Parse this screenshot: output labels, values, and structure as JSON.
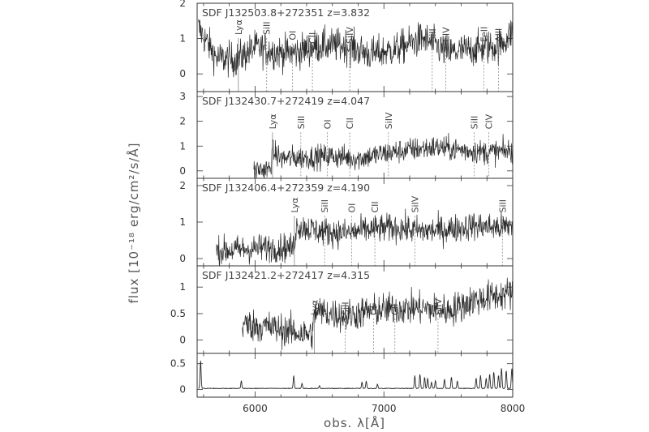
{
  "chart_data": {
    "type": "line",
    "xlabel": "obs. λ[Å]",
    "ylabel": "flux [10⁻¹⁸ erg/cm²/s/Å]",
    "xlim": [
      5550,
      8000
    ],
    "x_ticks": [
      6000,
      7000,
      8000
    ],
    "colors": {
      "line": "#2a2a2a",
      "marker": "#888888"
    },
    "panels": [
      {
        "label": "SDF J132503.8+272351  z=3.832",
        "ylim": [
          -0.5,
          2
        ],
        "y_ticks": [
          0,
          1,
          2
        ],
        "x_start": 5560,
        "x_end": 8000,
        "noise": 0.35,
        "markers": [
          {
            "name": "Lyα",
            "x": 5870,
            "label_level": 1.15,
            "style": "solid"
          },
          {
            "name": "SiII",
            "x": 6090,
            "label_level": 1.15,
            "style": "dotted"
          },
          {
            "name": "OI",
            "x": 6290,
            "label_level": 1.0,
            "style": "dotted"
          },
          {
            "name": "CII",
            "x": 6445,
            "label_level": 0.9,
            "style": "dotted"
          },
          {
            "name": "SiIV",
            "x": 6735,
            "label_level": 0.9,
            "style": "dotted"
          },
          {
            "name": "SiII",
            "x": 7375,
            "label_level": 0.95,
            "style": "dotted"
          },
          {
            "name": "CIV",
            "x": 7480,
            "label_level": 0.95,
            "style": "dotted"
          },
          {
            "name": "FeII",
            "x": 7775,
            "label_level": 0.95,
            "style": "dotted"
          },
          {
            "name": "AlII",
            "x": 7890,
            "label_level": 0.95,
            "style": "dotted"
          }
        ],
        "spectrum": [
          [
            5560,
            1.3
          ],
          [
            5700,
            0.45
          ],
          [
            5850,
            0.4
          ],
          [
            5900,
            0.5
          ],
          [
            6000,
            0.75
          ],
          [
            6200,
            0.6
          ],
          [
            6300,
            0.6
          ],
          [
            6500,
            0.8
          ],
          [
            6700,
            0.8
          ],
          [
            6900,
            0.55
          ],
          [
            7100,
            0.7
          ],
          [
            7300,
            1.0
          ],
          [
            7500,
            0.6
          ],
          [
            7700,
            0.7
          ],
          [
            7900,
            0.8
          ],
          [
            8000,
            1.2
          ]
        ]
      },
      {
        "label": "SDF J132430.7+272419  z=4.047",
        "ylim": [
          -0.3,
          3.2
        ],
        "y_ticks": [
          0,
          1,
          2,
          3
        ],
        "x_start": 5990,
        "x_end": 8000,
        "noise": 0.35,
        "markers": [
          {
            "name": "Lyα",
            "x": 6135,
            "label_level": 1.75,
            "style": "solid"
          },
          {
            "name": "SiII",
            "x": 6355,
            "label_level": 1.75,
            "style": "dotted"
          },
          {
            "name": "OI",
            "x": 6560,
            "label_level": 1.75,
            "style": "dotted"
          },
          {
            "name": "CII",
            "x": 6735,
            "label_level": 1.75,
            "style": "dotted"
          },
          {
            "name": "SiIV",
            "x": 7035,
            "label_level": 1.75,
            "style": "dotted"
          },
          {
            "name": "SiII",
            "x": 7700,
            "label_level": 1.75,
            "style": "dotted"
          },
          {
            "name": "CIV",
            "x": 7815,
            "label_level": 1.75,
            "style": "dotted"
          }
        ],
        "spectrum": [
          [
            5990,
            0.05
          ],
          [
            6120,
            0.05
          ],
          [
            6130,
            0.8
          ],
          [
            6200,
            0.5
          ],
          [
            6400,
            0.55
          ],
          [
            6600,
            0.6
          ],
          [
            6800,
            0.5
          ],
          [
            7000,
            0.7
          ],
          [
            7200,
            0.85
          ],
          [
            7400,
            0.95
          ],
          [
            7600,
            0.85
          ],
          [
            7800,
            0.75
          ],
          [
            8000,
            0.8
          ]
        ]
      },
      {
        "label": "SDF J132406.4+272359  z=4.190",
        "ylim": [
          -0.2,
          2.2
        ],
        "y_ticks": [
          0,
          1,
          2
        ],
        "x_start": 5700,
        "x_end": 8000,
        "noise": 0.28,
        "markers": [
          {
            "name": "Lyα",
            "x": 6305,
            "label_level": 1.3,
            "style": "solid"
          },
          {
            "name": "SiII",
            "x": 6540,
            "label_level": 1.3,
            "style": "dotted"
          },
          {
            "name": "OI",
            "x": 6750,
            "label_level": 1.3,
            "style": "dotted"
          },
          {
            "name": "CII",
            "x": 6930,
            "label_level": 1.3,
            "style": "dotted"
          },
          {
            "name": "SiIV",
            "x": 7240,
            "label_level": 1.3,
            "style": "dotted"
          },
          {
            "name": "SiII",
            "x": 7920,
            "label_level": 1.3,
            "style": "dotted"
          }
        ],
        "spectrum": [
          [
            5700,
            0.2
          ],
          [
            5900,
            0.25
          ],
          [
            6100,
            0.3
          ],
          [
            6300,
            0.3
          ],
          [
            6320,
            0.9
          ],
          [
            6500,
            0.75
          ],
          [
            6700,
            0.7
          ],
          [
            6900,
            0.8
          ],
          [
            7100,
            0.85
          ],
          [
            7300,
            0.75
          ],
          [
            7500,
            0.8
          ],
          [
            7700,
            0.9
          ],
          [
            7900,
            0.85
          ],
          [
            8000,
            0.9
          ]
        ]
      },
      {
        "label": "SDF J132421.2+272417  z=4.315",
        "ylim": [
          -0.25,
          1.4
        ],
        "y_ticks": [
          0,
          0.5,
          1
        ],
        "x_start": 5900,
        "x_end": 8000,
        "noise": 0.22,
        "markers": [
          {
            "name": "Lyα",
            "x": 6460,
            "label_level": 0.5,
            "style": "solid"
          },
          {
            "name": "SiII",
            "x": 6700,
            "label_level": 0.5,
            "style": "dotted"
          },
          {
            "name": "OI",
            "x": 6920,
            "label_level": 0.5,
            "style": "dotted"
          },
          {
            "name": "CII",
            "x": 7085,
            "label_level": 0.5,
            "style": "dotted"
          },
          {
            "name": "SiIV",
            "x": 7420,
            "label_level": 0.5,
            "style": "dotted"
          }
        ],
        "spectrum": [
          [
            5900,
            0.3
          ],
          [
            6100,
            0.25
          ],
          [
            6300,
            0.15
          ],
          [
            6440,
            0.1
          ],
          [
            6470,
            0.55
          ],
          [
            6700,
            0.45
          ],
          [
            6900,
            0.55
          ],
          [
            7100,
            0.6
          ],
          [
            7300,
            0.6
          ],
          [
            7500,
            0.55
          ],
          [
            7700,
            0.75
          ],
          [
            7900,
            0.85
          ],
          [
            8000,
            0.9
          ]
        ]
      },
      {
        "label": "",
        "ylim": [
          -0.15,
          0.7
        ],
        "y_ticks": [
          0,
          0.5
        ],
        "x_start": 5560,
        "x_end": 8000,
        "kind": "sky",
        "sky_lines": [
          {
            "x": 5577,
            "h": 0.55
          },
          {
            "x": 5893,
            "h": 0.15
          },
          {
            "x": 6300,
            "h": 0.25
          },
          {
            "x": 6364,
            "h": 0.1
          },
          {
            "x": 6500,
            "h": 0.05
          },
          {
            "x": 6830,
            "h": 0.12
          },
          {
            "x": 6863,
            "h": 0.14
          },
          {
            "x": 6950,
            "h": 0.08
          },
          {
            "x": 7240,
            "h": 0.25
          },
          {
            "x": 7280,
            "h": 0.28
          },
          {
            "x": 7316,
            "h": 0.22
          },
          {
            "x": 7340,
            "h": 0.2
          },
          {
            "x": 7370,
            "h": 0.12
          },
          {
            "x": 7400,
            "h": 0.15
          },
          {
            "x": 7470,
            "h": 0.18
          },
          {
            "x": 7524,
            "h": 0.22
          },
          {
            "x": 7570,
            "h": 0.15
          },
          {
            "x": 7716,
            "h": 0.2
          },
          {
            "x": 7750,
            "h": 0.25
          },
          {
            "x": 7794,
            "h": 0.2
          },
          {
            "x": 7821,
            "h": 0.28
          },
          {
            "x": 7853,
            "h": 0.32
          },
          {
            "x": 7890,
            "h": 0.26
          },
          {
            "x": 7913,
            "h": 0.4
          },
          {
            "x": 7950,
            "h": 0.35
          },
          {
            "x": 7993,
            "h": 0.38
          }
        ]
      }
    ]
  }
}
